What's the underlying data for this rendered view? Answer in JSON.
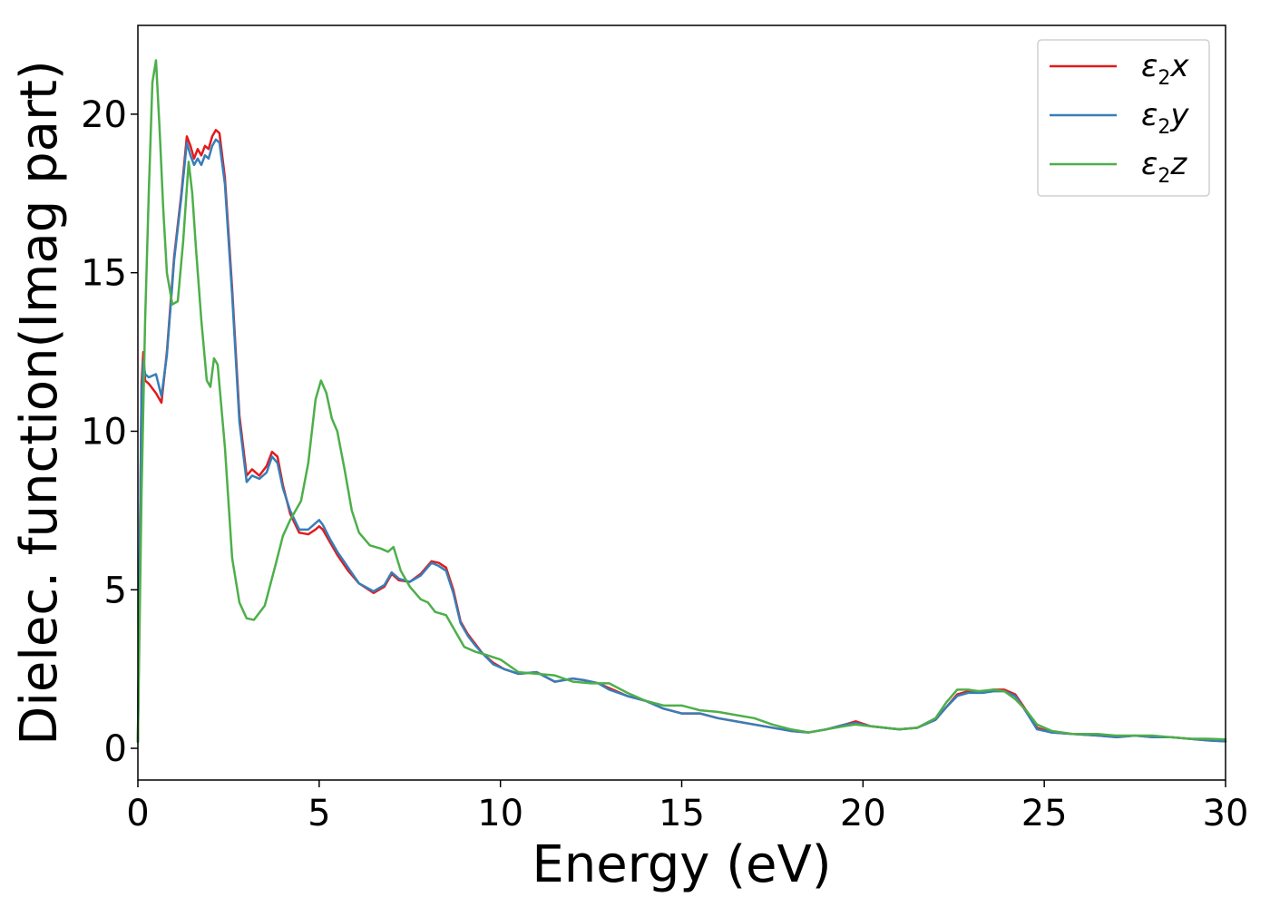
{
  "chart_data": {
    "type": "line",
    "title": "",
    "xlabel": "Energy (eV)",
    "ylabel": "Dielec. function(Imag part)",
    "xlim": [
      0,
      30
    ],
    "ylim": [
      -1,
      22.8
    ],
    "xticks": [
      0,
      5,
      10,
      15,
      20,
      25,
      30
    ],
    "yticks": [
      0,
      5,
      10,
      15,
      20
    ],
    "grid": false,
    "legend_position": "top-right",
    "series": [
      {
        "name": "ε2x",
        "legend": {
          "base": "ε",
          "sub": "2",
          "suffix": "x"
        },
        "color": "#e41a1c",
        "x": [
          0,
          0.1,
          0.15,
          0.2,
          0.3,
          0.5,
          0.65,
          0.8,
          1.0,
          1.2,
          1.35,
          1.45,
          1.55,
          1.65,
          1.75,
          1.85,
          1.95,
          2.05,
          2.15,
          2.25,
          2.4,
          2.6,
          2.8,
          3.0,
          3.15,
          3.35,
          3.55,
          3.7,
          3.85,
          4.0,
          4.2,
          4.45,
          4.7,
          4.9,
          5.0,
          5.1,
          5.3,
          5.5,
          5.8,
          6.1,
          6.5,
          6.8,
          7.0,
          7.2,
          7.5,
          7.8,
          8.1,
          8.3,
          8.5,
          8.7,
          8.9,
          9.1,
          9.3,
          9.5,
          9.8,
          10.1,
          10.5,
          11.0,
          11.5,
          12.0,
          12.3,
          12.7,
          13.0,
          13.5,
          14.0,
          14.5,
          15.0,
          15.5,
          16.0,
          16.5,
          17.0,
          17.5,
          18.0,
          18.5,
          19.0,
          19.5,
          19.8,
          20.2,
          20.6,
          21.0,
          21.5,
          22.0,
          22.3,
          22.6,
          22.9,
          23.3,
          23.6,
          23.9,
          24.2,
          24.5,
          24.8,
          25.2,
          25.8,
          26.5,
          27.0,
          27.5,
          28.0,
          28.5,
          29.0,
          29.5,
          30.0
        ],
        "y": [
          0.2,
          11.5,
          12.5,
          11.6,
          11.5,
          11.2,
          10.9,
          12.5,
          15.5,
          17.5,
          19.3,
          19.0,
          18.6,
          18.9,
          18.7,
          19.0,
          18.9,
          19.3,
          19.5,
          19.4,
          18.0,
          14.5,
          10.5,
          8.6,
          8.8,
          8.6,
          8.9,
          9.35,
          9.2,
          8.3,
          7.4,
          6.8,
          6.75,
          6.9,
          7.0,
          6.9,
          6.5,
          6.1,
          5.6,
          5.2,
          4.9,
          5.1,
          5.5,
          5.3,
          5.25,
          5.5,
          5.9,
          5.85,
          5.7,
          5.0,
          4.0,
          3.6,
          3.3,
          3.0,
          2.7,
          2.5,
          2.35,
          2.4,
          2.1,
          2.2,
          2.15,
          2.05,
          1.9,
          1.65,
          1.5,
          1.25,
          1.1,
          1.1,
          0.95,
          0.85,
          0.75,
          0.65,
          0.55,
          0.5,
          0.6,
          0.75,
          0.85,
          0.7,
          0.65,
          0.6,
          0.65,
          0.9,
          1.3,
          1.7,
          1.8,
          1.8,
          1.85,
          1.85,
          1.7,
          1.2,
          0.65,
          0.5,
          0.45,
          0.4,
          0.35,
          0.4,
          0.35,
          0.35,
          0.3,
          0.25,
          0.22
        ]
      },
      {
        "name": "ε2y",
        "legend": {
          "base": "ε",
          "sub": "2",
          "suffix": "y"
        },
        "color": "#377eb8",
        "x": [
          0,
          0.1,
          0.15,
          0.2,
          0.3,
          0.5,
          0.65,
          0.8,
          1.0,
          1.2,
          1.35,
          1.45,
          1.55,
          1.65,
          1.75,
          1.85,
          1.95,
          2.05,
          2.15,
          2.25,
          2.4,
          2.6,
          2.8,
          3.0,
          3.15,
          3.35,
          3.55,
          3.7,
          3.85,
          4.0,
          4.2,
          4.45,
          4.7,
          4.9,
          5.0,
          5.1,
          5.3,
          5.5,
          5.8,
          6.1,
          6.5,
          6.8,
          7.0,
          7.2,
          7.5,
          7.8,
          8.1,
          8.3,
          8.5,
          8.7,
          8.9,
          9.1,
          9.3,
          9.5,
          9.8,
          10.1,
          10.5,
          11.0,
          11.5,
          12.0,
          12.3,
          12.7,
          13.0,
          13.5,
          14.0,
          14.5,
          15.0,
          15.5,
          16.0,
          16.5,
          17.0,
          17.5,
          18.0,
          18.5,
          19.0,
          19.5,
          19.8,
          20.2,
          20.6,
          21.0,
          21.5,
          22.0,
          22.3,
          22.6,
          22.9,
          23.3,
          23.6,
          23.9,
          24.2,
          24.5,
          24.8,
          25.2,
          25.8,
          26.5,
          27.0,
          27.5,
          28.0,
          28.5,
          29.0,
          29.5,
          30.0
        ],
        "y": [
          0.2,
          11.2,
          12.2,
          11.8,
          11.7,
          11.8,
          11.1,
          12.4,
          15.4,
          17.4,
          19.1,
          18.7,
          18.4,
          18.6,
          18.4,
          18.7,
          18.6,
          19.0,
          19.2,
          19.1,
          17.8,
          14.3,
          10.3,
          8.4,
          8.6,
          8.5,
          8.7,
          9.2,
          9.0,
          8.2,
          7.5,
          6.9,
          6.9,
          7.1,
          7.2,
          7.05,
          6.6,
          6.2,
          5.7,
          5.2,
          4.95,
          5.15,
          5.55,
          5.35,
          5.25,
          5.45,
          5.85,
          5.75,
          5.6,
          4.9,
          3.95,
          3.55,
          3.25,
          3.0,
          2.65,
          2.5,
          2.35,
          2.4,
          2.1,
          2.2,
          2.15,
          2.05,
          1.85,
          1.65,
          1.5,
          1.25,
          1.1,
          1.1,
          0.95,
          0.85,
          0.75,
          0.65,
          0.55,
          0.5,
          0.6,
          0.75,
          0.8,
          0.7,
          0.65,
          0.6,
          0.65,
          0.9,
          1.3,
          1.65,
          1.75,
          1.75,
          1.8,
          1.8,
          1.65,
          1.15,
          0.6,
          0.5,
          0.45,
          0.4,
          0.35,
          0.4,
          0.35,
          0.35,
          0.3,
          0.25,
          0.22
        ]
      },
      {
        "name": "ε2z",
        "legend": {
          "base": "ε",
          "sub": "2",
          "suffix": "z"
        },
        "color": "#4daf4a",
        "x": [
          0,
          0.1,
          0.2,
          0.3,
          0.4,
          0.5,
          0.6,
          0.7,
          0.8,
          0.95,
          1.1,
          1.25,
          1.4,
          1.5,
          1.6,
          1.75,
          1.9,
          2.0,
          2.1,
          2.2,
          2.4,
          2.6,
          2.8,
          3.0,
          3.2,
          3.5,
          3.8,
          4.0,
          4.2,
          4.5,
          4.7,
          4.9,
          5.05,
          5.2,
          5.35,
          5.5,
          5.7,
          5.9,
          6.1,
          6.4,
          6.7,
          6.9,
          7.05,
          7.25,
          7.5,
          7.8,
          8.0,
          8.2,
          8.5,
          8.7,
          9.0,
          9.3,
          9.6,
          10.0,
          10.5,
          11.0,
          11.5,
          12.0,
          12.5,
          13.0,
          13.5,
          14.0,
          14.5,
          15.0,
          15.5,
          16.0,
          16.5,
          17.0,
          17.5,
          18.0,
          18.5,
          19.0,
          19.5,
          19.8,
          20.2,
          20.6,
          21.0,
          21.5,
          22.0,
          22.3,
          22.6,
          22.9,
          23.2,
          23.6,
          23.9,
          24.2,
          24.5,
          24.8,
          25.2,
          25.8,
          26.5,
          27.0,
          27.5,
          28.0,
          28.5,
          29.0,
          29.5,
          30.0
        ],
        "y": [
          0.2,
          8.0,
          13.5,
          17.5,
          21.0,
          21.7,
          19.5,
          17.0,
          15.0,
          14.0,
          14.1,
          16.0,
          18.5,
          17.5,
          15.8,
          13.5,
          11.6,
          11.4,
          12.3,
          12.1,
          9.5,
          6.0,
          4.6,
          4.1,
          4.05,
          4.5,
          5.8,
          6.7,
          7.2,
          7.8,
          9.0,
          11.0,
          11.6,
          11.2,
          10.4,
          10.0,
          8.8,
          7.5,
          6.8,
          6.4,
          6.3,
          6.2,
          6.35,
          5.6,
          5.1,
          4.7,
          4.6,
          4.3,
          4.2,
          3.8,
          3.2,
          3.05,
          2.95,
          2.8,
          2.4,
          2.35,
          2.3,
          2.1,
          2.05,
          2.05,
          1.75,
          1.5,
          1.35,
          1.35,
          1.2,
          1.15,
          1.05,
          0.95,
          0.75,
          0.6,
          0.5,
          0.6,
          0.7,
          0.75,
          0.7,
          0.65,
          0.6,
          0.65,
          0.95,
          1.45,
          1.85,
          1.85,
          1.8,
          1.85,
          1.8,
          1.55,
          1.2,
          0.75,
          0.55,
          0.45,
          0.45,
          0.4,
          0.4,
          0.4,
          0.35,
          0.3,
          0.3,
          0.28
        ]
      }
    ]
  }
}
